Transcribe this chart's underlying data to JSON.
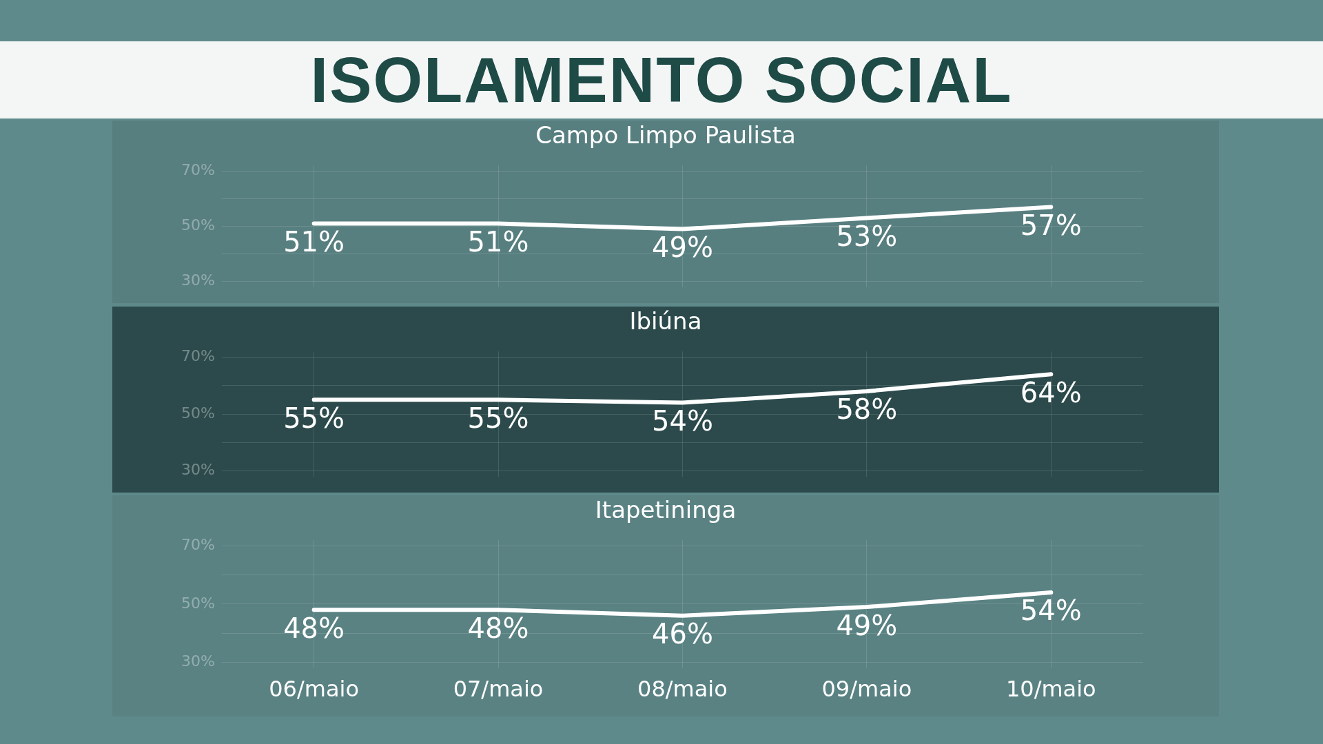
{
  "chart_data": [
    {
      "type": "line",
      "title": "ISOLAMENTO SOCIAL",
      "subtitle": "Campo Limpo Paulista",
      "categories": [
        null,
        null,
        null,
        null,
        null
      ],
      "series": [
        {
          "color": "#ffffff",
          "values": [
            51,
            51,
            49,
            53,
            57
          ],
          "value_labels": [
            "51%",
            "51%",
            "49%",
            "53%",
            "57%"
          ]
        }
      ],
      "ylim": [
        28,
        72
      ],
      "yticks": [
        {
          "value": 30,
          "label": "30%"
        },
        {
          "value": 40,
          "label": null
        },
        {
          "value": 50,
          "label": "50%"
        },
        {
          "value": 60,
          "label": null
        },
        {
          "value": 70,
          "label": "70%"
        }
      ],
      "grid": true,
      "tick_labels": "y",
      "marker": "none"
    },
    {
      "type": "line",
      "title": "Ibiúna",
      "categories": [
        null,
        null,
        null,
        null,
        null
      ],
      "series": [
        {
          "color": "#ffffff",
          "values": [
            55,
            55,
            54,
            58,
            64
          ],
          "value_labels": [
            "55%",
            "55%",
            "54%",
            "58%",
            "64%"
          ]
        }
      ],
      "ylim": [
        28,
        72
      ],
      "yticks": [
        {
          "value": 30,
          "label": "30%"
        },
        {
          "value": 40,
          "label": null
        },
        {
          "value": 50,
          "label": "50%"
        },
        {
          "value": 60,
          "label": null
        },
        {
          "value": 70,
          "label": "70%"
        }
      ],
      "grid": true,
      "tick_labels": "y",
      "marker": "none"
    },
    {
      "type": "line",
      "title": "Itapetininga",
      "categories": [
        "06/maio",
        "07/maio",
        "08/maio",
        "09/maio",
        "10/maio"
      ],
      "series": [
        {
          "color": "#ffffff",
          "values": [
            48,
            48,
            46,
            49,
            54
          ],
          "value_labels": [
            "48%",
            "48%",
            "46%",
            "49%",
            "54%"
          ]
        }
      ],
      "ylim": [
        28,
        72
      ],
      "yticks": [
        {
          "value": 30,
          "label": "30%"
        },
        {
          "value": 40,
          "label": null
        },
        {
          "value": 50,
          "label": "50%"
        },
        {
          "value": 60,
          "label": null
        },
        {
          "value": 70,
          "label": "70%"
        }
      ],
      "grid": true,
      "marker": "none"
    }
  ]
}
